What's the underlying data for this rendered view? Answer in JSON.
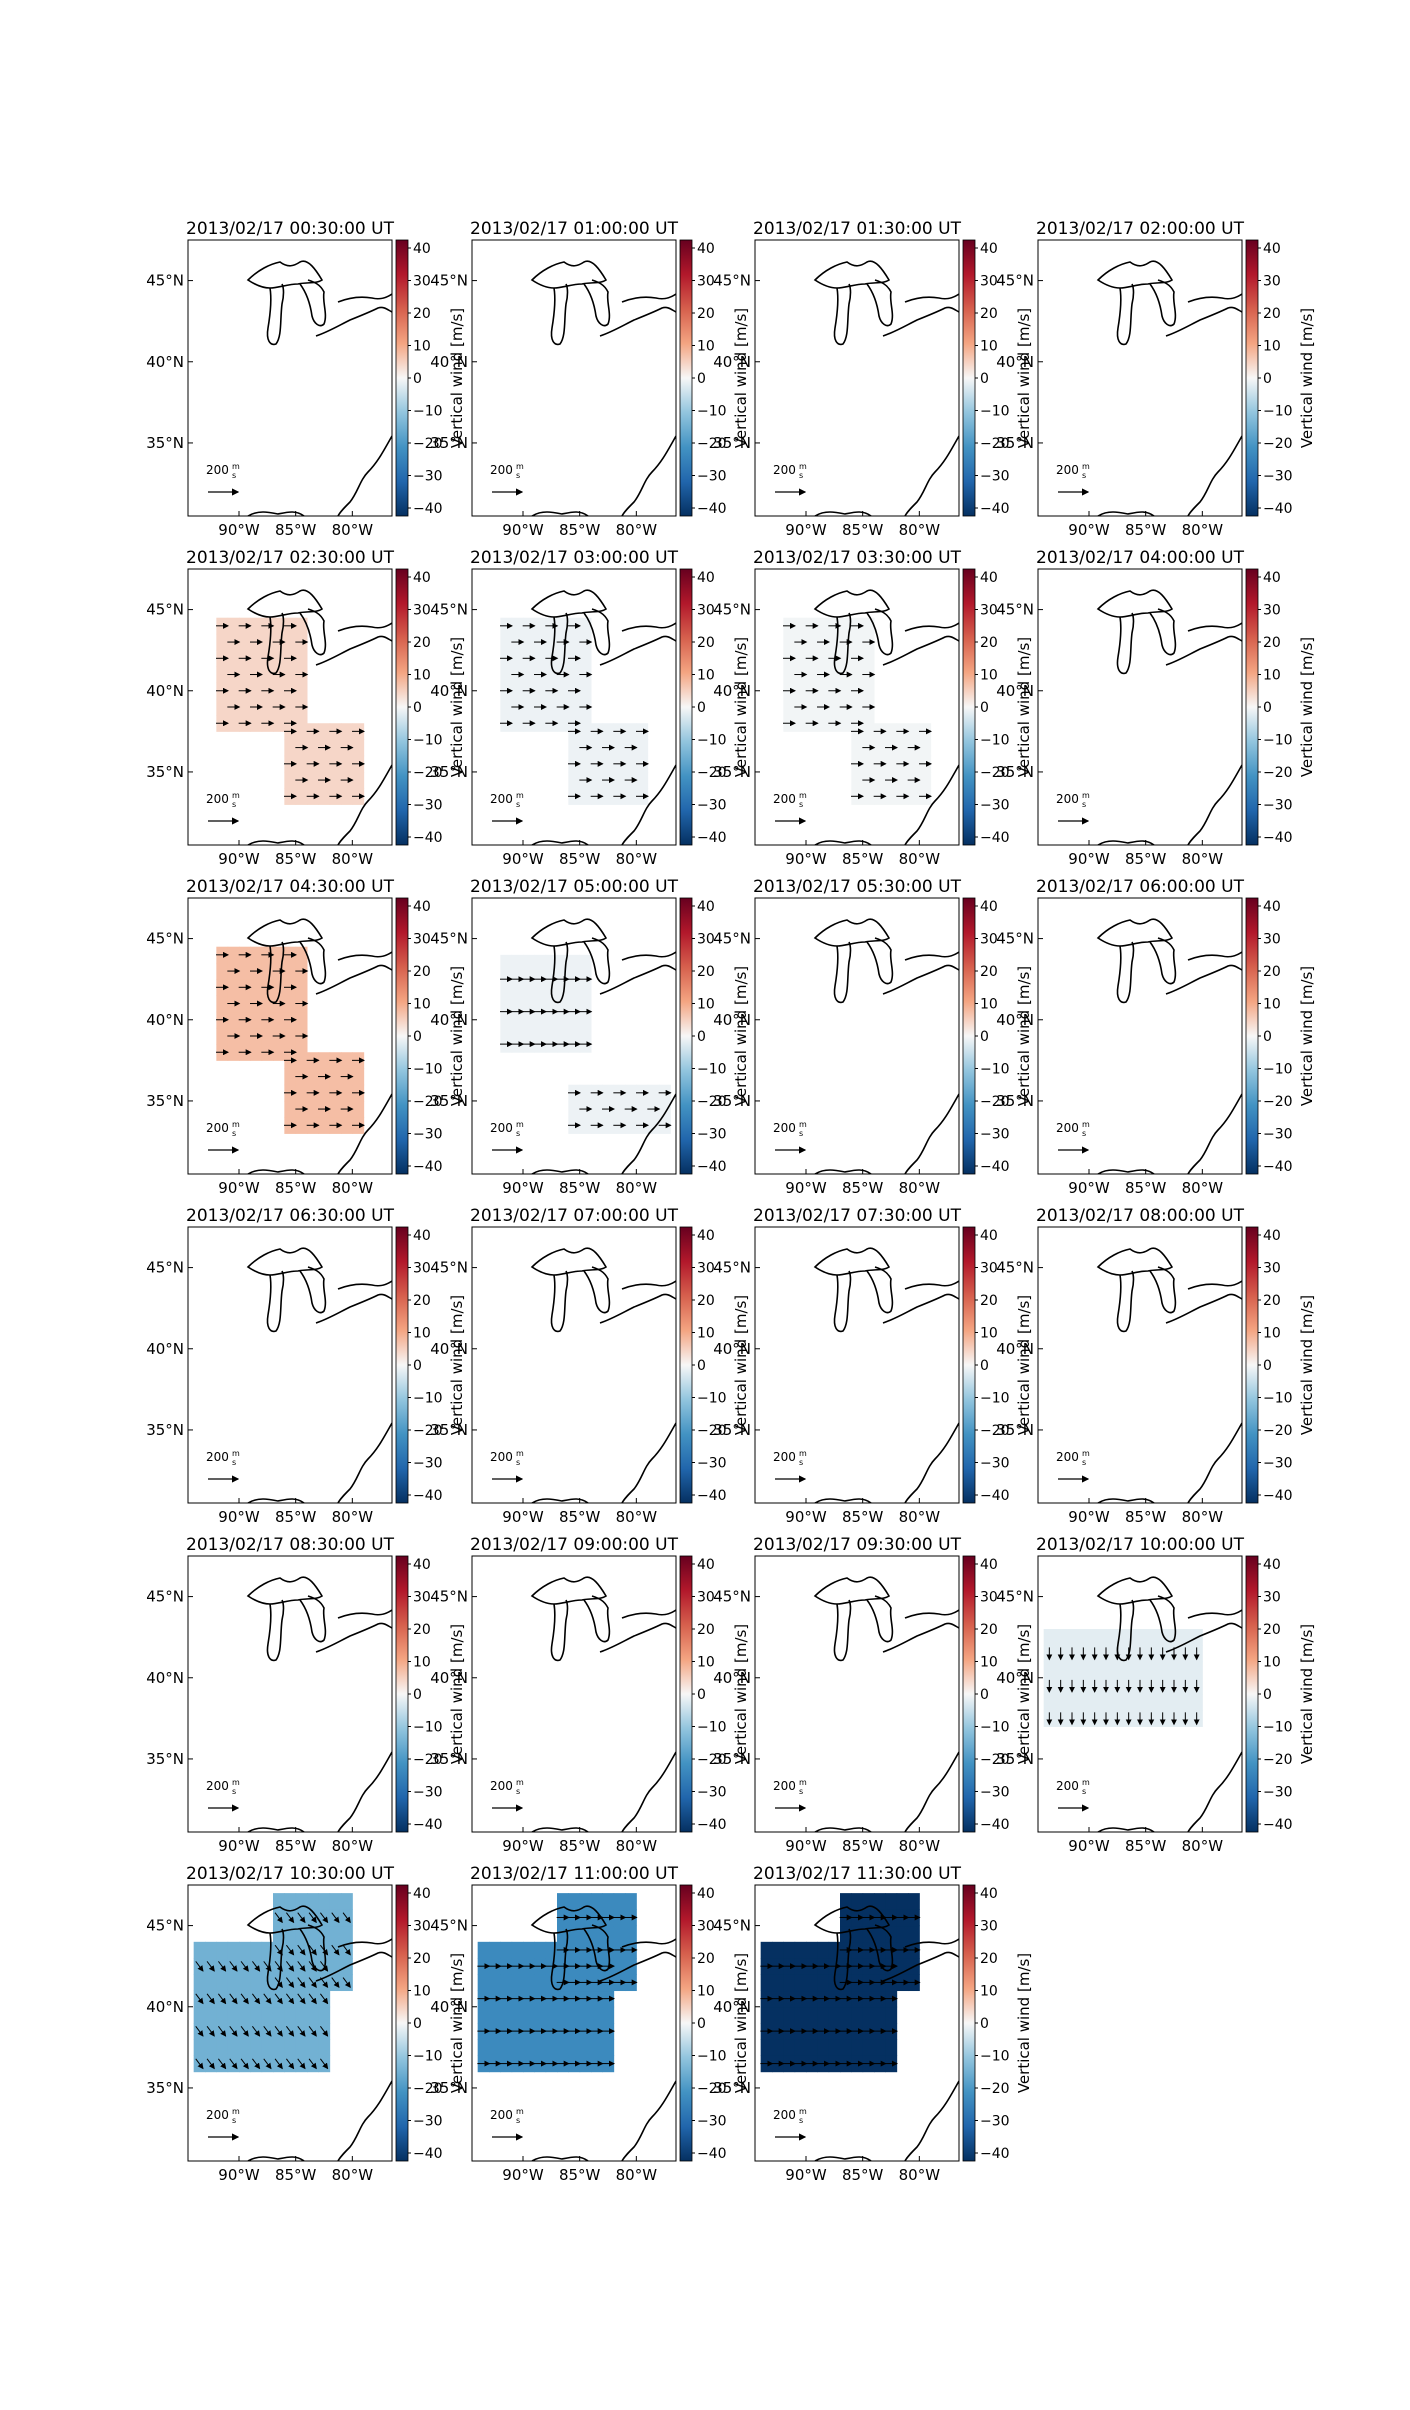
{
  "figure": {
    "colorbar": {
      "label": "Vertical wind [m/s]",
      "ticks": [
        "40",
        "30",
        "20",
        "10",
        "0",
        "−10",
        "−20",
        "−30",
        "−40"
      ],
      "vmin": -40,
      "vmax": 40,
      "colormap": "RdBu_r"
    },
    "axes": {
      "xticks": [
        "90°W",
        "85°W",
        "80°W"
      ],
      "yticks": [
        "45°N",
        "40°N",
        "35°N"
      ]
    },
    "scale_label": "200",
    "scale_unit_num": "m",
    "scale_unit_den": "s"
  },
  "panels": [
    {
      "title": "2013/02/17 00:30:00 UT",
      "value": null,
      "arrows": null
    },
    {
      "title": "2013/02/17 01:00:00 UT",
      "value": null,
      "arrows": null
    },
    {
      "title": "2013/02/17 01:30:00 UT",
      "value": null,
      "arrows": null
    },
    {
      "title": "2013/02/17 02:00:00 UT",
      "value": null,
      "arrows": null
    },
    {
      "title": "2013/02/17 02:30:00 UT",
      "value": 4,
      "arrows": "east"
    },
    {
      "title": "2013/02/17 03:00:00 UT",
      "value": -1,
      "arrows": "east"
    },
    {
      "title": "2013/02/17 03:30:00 UT",
      "value": -0.5,
      "arrows": "east"
    },
    {
      "title": "2013/02/17 04:00:00 UT",
      "value": null,
      "arrows": null
    },
    {
      "title": "2013/02/17 04:30:00 UT",
      "value": 7,
      "arrows": "east"
    },
    {
      "title": "2013/02/17 05:00:00 UT",
      "value": -1,
      "arrows": "east"
    },
    {
      "title": "2013/02/17 05:30:00 UT",
      "value": null,
      "arrows": null
    },
    {
      "title": "2013/02/17 06:00:00 UT",
      "value": null,
      "arrows": null
    },
    {
      "title": "2013/02/17 06:30:00 UT",
      "value": null,
      "arrows": null
    },
    {
      "title": "2013/02/17 07:00:00 UT",
      "value": null,
      "arrows": null
    },
    {
      "title": "2013/02/17 07:30:00 UT",
      "value": null,
      "arrows": null
    },
    {
      "title": "2013/02/17 08:00:00 UT",
      "value": null,
      "arrows": null
    },
    {
      "title": "2013/02/17 08:30:00 UT",
      "value": null,
      "arrows": null
    },
    {
      "title": "2013/02/17 09:00:00 UT",
      "value": null,
      "arrows": null
    },
    {
      "title": "2013/02/17 09:30:00 UT",
      "value": null,
      "arrows": null
    },
    {
      "title": "2013/02/17 10:00:00 UT",
      "value": -2,
      "arrows": "south"
    },
    {
      "title": "2013/02/17 10:30:00 UT",
      "value": -14,
      "arrows": "southeast"
    },
    {
      "title": "2013/02/17 11:00:00 UT",
      "value": -22,
      "arrows": "east"
    },
    {
      "title": "2013/02/17 11:30:00 UT",
      "value": -40,
      "arrows": "east"
    }
  ]
}
